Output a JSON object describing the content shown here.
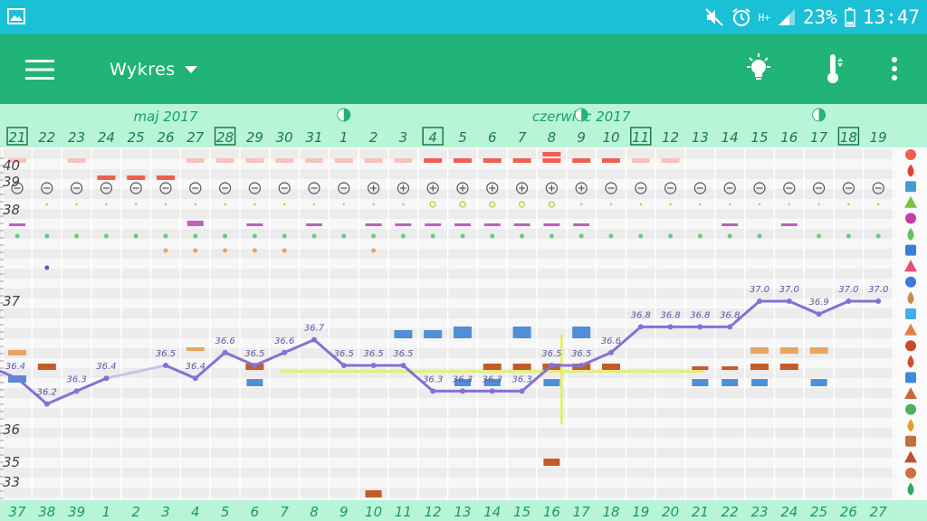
{
  "status": {
    "battery": "23%",
    "time": "13:47",
    "network": "H+"
  },
  "toolbar": {
    "title": "Wykres"
  },
  "calendar": {
    "months": [
      {
        "label": "maj 2017",
        "day_index": 5
      },
      {
        "label": "czerwiec 2017",
        "day_index": 19
      }
    ],
    "moons": [
      11,
      19,
      27
    ],
    "days": [
      "21",
      "22",
      "23",
      "24",
      "25",
      "26",
      "27",
      "28",
      "29",
      "30",
      "31",
      "1",
      "2",
      "3",
      "4",
      "5",
      "6",
      "7",
      "8",
      "9",
      "10",
      "11",
      "12",
      "13",
      "14",
      "15",
      "16",
      "17",
      "18",
      "19"
    ],
    "boxed_days": [
      0,
      7,
      14,
      21,
      28
    ],
    "cycle_days": [
      "37",
      "38",
      "39",
      "1",
      "2",
      "3",
      "4",
      "5",
      "6",
      "7",
      "8",
      "9",
      "10",
      "11",
      "12",
      "13",
      "14",
      "15",
      "16",
      "17",
      "18",
      "19",
      "20",
      "21",
      "22",
      "23",
      "24",
      "25",
      "26",
      "27"
    ]
  },
  "axis": {
    "ticks": [
      {
        "label": "40",
        "value": 40.0
      },
      {
        "label": "39",
        "value": 39.0
      },
      {
        "label": "38",
        "value": 38.0
      },
      {
        "label": "37",
        "value": 37.0
      },
      {
        "label": "36",
        "value": 36.0
      },
      {
        "label": "35",
        "value": 35.0
      },
      {
        "label": "33",
        "value": 33.0
      }
    ]
  },
  "chart_data": {
    "type": "line",
    "series": [
      {
        "values": [
          36.4,
          36.2,
          36.3,
          36.4,
          null,
          36.5,
          36.4,
          36.6,
          36.5,
          36.6,
          36.7,
          36.5,
          36.5,
          36.5,
          36.3,
          36.3,
          36.3,
          36.3,
          36.5,
          36.5,
          36.6,
          36.8,
          36.8,
          36.8,
          36.8,
          37.0,
          37.0,
          36.9,
          37.0,
          37.0
        ],
        "labels": [
          "36.4",
          "36.2",
          "36.3",
          "36.4",
          "",
          "36.5",
          "36.4",
          "36.6",
          "36.5",
          "36.6",
          "36.7",
          "36.5",
          "36.5",
          "36.5",
          "36.3",
          "36.3",
          "36.3",
          "36.3",
          "36.5",
          "36.5",
          "36.6",
          "36.8",
          "36.8",
          "36.8",
          "36.8",
          "37.0",
          "37.0",
          "36.9",
          "37.0",
          "37.0"
        ]
      }
    ],
    "coverline": 36.46,
    "ovulation_day_index": 18,
    "grid": true
  },
  "colors": {
    "primary": "#20b476",
    "statusbar": "#1ac0d6",
    "accent_light": "#b8f5d8",
    "day_text": "#15a064",
    "temp_line": "#8372d6",
    "coverline": "#e2ee78",
    "menstruation": "#f06050",
    "menstruation_light": "#f8c2bf",
    "mucus": "#e7a55f",
    "intercourse": "#c05fc0",
    "blue_bar": "#4e8fd8",
    "brown_bar": "#c55a28"
  },
  "icons": {
    "legend": [
      "flower-icon",
      "drop-icon",
      "puzzle-icon",
      "spiral-icon",
      "heart-icon",
      "leaf-icon",
      "smiley-icon",
      "bottle-icon",
      "document-icon",
      "figure-icon",
      "virus-icon",
      "fist-icon",
      "spray-icon",
      "drops-icon",
      "face-icon",
      "foot-icon",
      "medkit-icon",
      "sun-icon",
      "dots-icon",
      "pawn-icon",
      "monitor-icon",
      "recycle-icon"
    ]
  }
}
